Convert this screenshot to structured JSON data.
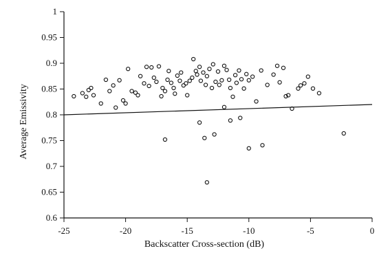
{
  "chart_data": {
    "type": "scatter",
    "title": "",
    "xlabel": "Backscatter Cross-section (dB)",
    "ylabel": "Average Emissivity",
    "xlim": [
      -25,
      0
    ],
    "ylim": [
      0.6,
      1
    ],
    "xticks": [
      -25,
      -20,
      -15,
      -10,
      -5,
      0
    ],
    "xtick_labels": [
      "-25",
      "-20",
      "-15",
      "-10",
      "-5",
      "0"
    ],
    "yticks": [
      0.6,
      0.65,
      0.7,
      0.75,
      0.8,
      0.85,
      0.9,
      0.95,
      1
    ],
    "ytick_labels": [
      "0.6",
      "0.65",
      "0.7",
      "0.75",
      "0.8",
      "0.85",
      "0.9",
      "0.95",
      "1"
    ],
    "grid": false,
    "legend": "none",
    "series": [
      {
        "points": [
          [
            -24.2,
            0.836
          ],
          [
            -23.5,
            0.842
          ],
          [
            -23.2,
            0.835
          ],
          [
            -23.0,
            0.848
          ],
          [
            -22.8,
            0.852
          ],
          [
            -22.6,
            0.838
          ],
          [
            -22.0,
            0.822
          ],
          [
            -21.6,
            0.868
          ],
          [
            -21.3,
            0.846
          ],
          [
            -21.0,
            0.857
          ],
          [
            -20.8,
            0.814
          ],
          [
            -20.5,
            0.867
          ],
          [
            -20.2,
            0.828
          ],
          [
            -20.0,
            0.822
          ],
          [
            -19.8,
            0.889
          ],
          [
            -19.5,
            0.846
          ],
          [
            -19.2,
            0.843
          ],
          [
            -19.0,
            0.838
          ],
          [
            -18.8,
            0.875
          ],
          [
            -18.5,
            0.861
          ],
          [
            -18.3,
            0.893
          ],
          [
            -18.1,
            0.856
          ],
          [
            -17.9,
            0.892
          ],
          [
            -17.7,
            0.872
          ],
          [
            -17.5,
            0.864
          ],
          [
            -17.3,
            0.894
          ],
          [
            -17.1,
            0.836
          ],
          [
            -17.0,
            0.852
          ],
          [
            -16.8,
            0.846
          ],
          [
            -16.6,
            0.868
          ],
          [
            -16.5,
            0.885
          ],
          [
            -16.3,
            0.862
          ],
          [
            -16.1,
            0.852
          ],
          [
            -16.0,
            0.841
          ],
          [
            -15.8,
            0.876
          ],
          [
            -15.6,
            0.866
          ],
          [
            -15.5,
            0.882
          ],
          [
            -15.3,
            0.857
          ],
          [
            -15.1,
            0.861
          ],
          [
            -15.0,
            0.838
          ],
          [
            -14.8,
            0.866
          ],
          [
            -14.6,
            0.872
          ],
          [
            -14.5,
            0.908
          ],
          [
            -14.3,
            0.885
          ],
          [
            -14.2,
            0.878
          ],
          [
            -14.0,
            0.893
          ],
          [
            -13.9,
            0.866
          ],
          [
            -13.7,
            0.882
          ],
          [
            -13.5,
            0.858
          ],
          [
            -13.4,
            0.875
          ],
          [
            -13.2,
            0.889
          ],
          [
            -13.0,
            0.852
          ],
          [
            -12.9,
            0.898
          ],
          [
            -12.7,
            0.864
          ],
          [
            -12.5,
            0.884
          ],
          [
            -12.4,
            0.858
          ],
          [
            -12.2,
            0.867
          ],
          [
            -12.0,
            0.895
          ],
          [
            -11.8,
            0.887
          ],
          [
            -11.6,
            0.868
          ],
          [
            -11.5,
            0.852
          ],
          [
            -11.3,
            0.835
          ],
          [
            -11.1,
            0.877
          ],
          [
            -11.0,
            0.862
          ],
          [
            -10.8,
            0.886
          ],
          [
            -10.6,
            0.869
          ],
          [
            -10.4,
            0.851
          ],
          [
            -10.2,
            0.879
          ],
          [
            -10.0,
            0.867
          ],
          [
            -9.7,
            0.874
          ],
          [
            -9.0,
            0.886
          ],
          [
            -8.5,
            0.858
          ],
          [
            -8.0,
            0.878
          ],
          [
            -7.7,
            0.895
          ],
          [
            -7.5,
            0.863
          ],
          [
            -7.2,
            0.891
          ],
          [
            -7.0,
            0.836
          ],
          [
            -6.8,
            0.838
          ],
          [
            -6.5,
            0.812
          ],
          [
            -6.0,
            0.851
          ],
          [
            -5.8,
            0.857
          ],
          [
            -5.5,
            0.861
          ],
          [
            -5.2,
            0.874
          ],
          [
            -4.8,
            0.851
          ],
          [
            -4.3,
            0.842
          ],
          [
            -16.8,
            0.752
          ],
          [
            -14.0,
            0.785
          ],
          [
            -13.6,
            0.755
          ],
          [
            -13.4,
            0.669
          ],
          [
            -12.8,
            0.762
          ],
          [
            -12.0,
            0.815
          ],
          [
            -11.5,
            0.789
          ],
          [
            -10.7,
            0.794
          ],
          [
            -10.0,
            0.735
          ],
          [
            -9.4,
            0.826
          ],
          [
            -8.9,
            0.741
          ],
          [
            -2.3,
            0.764
          ]
        ]
      }
    ],
    "reference_line": {
      "points": [
        [
          -25,
          0.8
        ],
        [
          0,
          0.82
        ]
      ]
    }
  }
}
